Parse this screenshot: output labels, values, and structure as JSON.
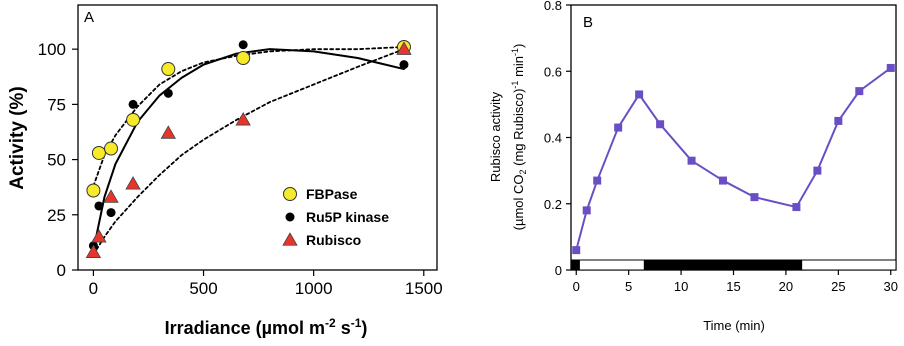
{
  "chart_data": [
    {
      "panel": "A",
      "type": "scatter",
      "title": "",
      "xlabel_main": "Irradiance (µmol m",
      "xlabel_sup1": "-2",
      "xlabel_mid": " s",
      "xlabel_sup2": "-1",
      "xlabel_end": ")",
      "ylabel": "Activity (%)",
      "xlim": [
        -70,
        1560
      ],
      "ylim": [
        0,
        120
      ],
      "xticks": [
        0,
        500,
        1000,
        1500
      ],
      "yticks": [
        0,
        25,
        50,
        75,
        100
      ],
      "legend_position": "bottom-right",
      "series": [
        {
          "name": "FBPase",
          "marker": "circle",
          "color": "#f7ea2a",
          "x": [
            0,
            25,
            80,
            180,
            340,
            680,
            1410
          ],
          "y": [
            36,
            53,
            55,
            68,
            91,
            96,
            101
          ]
        },
        {
          "name": "Ru5P kinase",
          "marker": "dot",
          "color": "#000000",
          "x": [
            0,
            25,
            80,
            180,
            340,
            680,
            1410
          ],
          "y": [
            11,
            29,
            26,
            75,
            80,
            102,
            93
          ]
        },
        {
          "name": "Rubisco",
          "marker": "triangle",
          "color": "#e6352b",
          "x": [
            0,
            25,
            80,
            180,
            340,
            680,
            1410
          ],
          "y": [
            8,
            15,
            33,
            39,
            62,
            68,
            100
          ]
        }
      ],
      "curves": [
        {
          "style": "solid",
          "x": [
            0,
            50,
            100,
            200,
            300,
            400,
            500,
            650,
            800,
            1000,
            1200,
            1410
          ],
          "y": [
            9,
            33,
            48,
            67,
            79,
            87,
            93,
            98,
            100,
            99,
            96,
            91
          ]
        },
        {
          "style": "dotted",
          "x": [
            0,
            50,
            100,
            200,
            300,
            400,
            500,
            650,
            800,
            1000,
            1200,
            1410
          ],
          "y": [
            38,
            52,
            61,
            74,
            84,
            90,
            94,
            97,
            99,
            100,
            100,
            101
          ]
        },
        {
          "style": "dotted",
          "x": [
            0,
            50,
            100,
            200,
            300,
            400,
            500,
            650,
            800,
            1000,
            1200,
            1410
          ],
          "y": [
            7,
            15,
            22,
            33,
            43,
            52,
            59,
            68,
            76,
            84,
            92,
            100
          ]
        }
      ]
    },
    {
      "panel": "B",
      "type": "line",
      "title": "",
      "xlabel": "Time (min)",
      "ylabel_line1": "Rubisco activity",
      "ylabel_line2_main": "(µmol CO",
      "ylabel_line2_sub": "2",
      "ylabel_line2_mid": " (mg Rubisco)",
      "ylabel_line2_sup1": "-1",
      "ylabel_line2_mid2": " min",
      "ylabel_line2_sup2": "-1",
      "ylabel_line2_end": ")",
      "xlim": [
        -0.5,
        30.5
      ],
      "ylim": [
        0,
        0.8
      ],
      "xticks": [
        0,
        5,
        10,
        15,
        20,
        25,
        30
      ],
      "yticks": [
        0,
        0.2,
        0.4,
        0.6,
        0.8
      ],
      "ytick_labels": [
        "0",
        "0.2",
        "0.4",
        "0.6",
        "0.8"
      ],
      "series": [
        {
          "name": "",
          "color": "#6a4fc4",
          "marker": "square",
          "x": [
            0,
            1,
            2,
            4,
            6,
            8,
            11,
            14,
            17,
            21,
            23,
            25,
            27,
            30
          ],
          "y": [
            0.06,
            0.18,
            0.27,
            0.43,
            0.53,
            0.44,
            0.33,
            0.27,
            0.22,
            0.19,
            0.3,
            0.45,
            0.54,
            0.61
          ]
        }
      ],
      "light_bar": [
        {
          "from": -0.5,
          "to": 0.3,
          "state": "dark"
        },
        {
          "from": 0.3,
          "to": 6.5,
          "state": "light"
        },
        {
          "from": 6.5,
          "to": 21.5,
          "state": "dark"
        },
        {
          "from": 21.5,
          "to": 30.5,
          "state": "light"
        }
      ]
    }
  ]
}
